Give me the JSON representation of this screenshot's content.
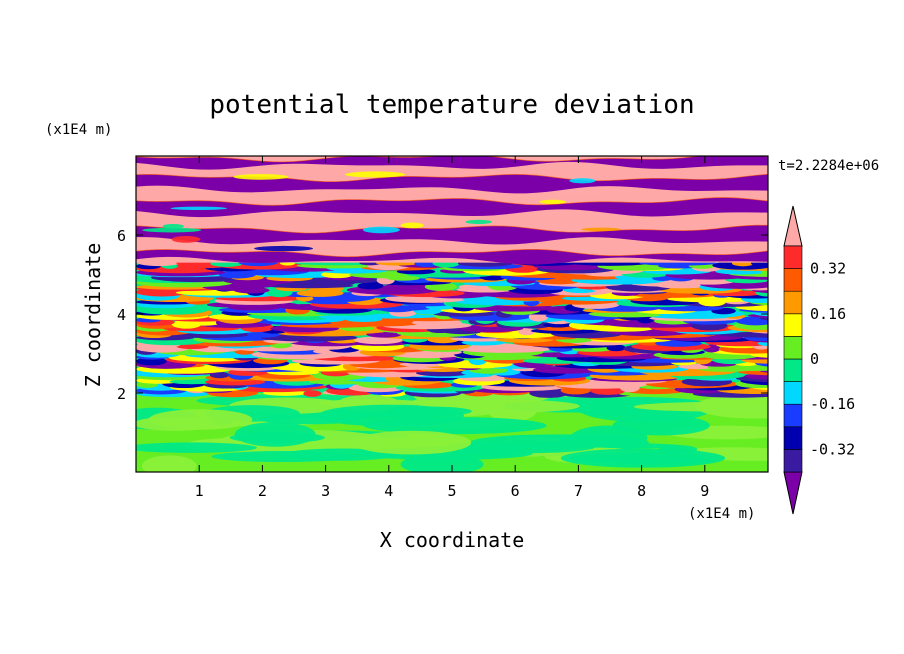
{
  "chart_data": {
    "type": "heatmap",
    "title": "potential temperature deviation",
    "xlabel": "X coordinate",
    "ylabel": "Z coordinate",
    "x_unit": "(x1E4 m)",
    "z_unit": "(x1E4 m)",
    "time_label": "t=2.2284e+06",
    "xlim": [
      0,
      10
    ],
    "zlim": [
      0,
      8
    ],
    "x_ticks": [
      1,
      2,
      3,
      4,
      5,
      6,
      7,
      8,
      9
    ],
    "z_ticks": [
      2,
      4,
      6
    ],
    "x_tick_labels": [
      "1",
      "2",
      "3",
      "4",
      "5",
      "6",
      "7",
      "8",
      "9"
    ],
    "z_tick_labels": [
      "2",
      "4",
      "6"
    ],
    "colorbar": {
      "levels": [
        -0.48,
        -0.4,
        -0.32,
        -0.24,
        -0.16,
        -0.08,
        0,
        0.08,
        0.16,
        0.24,
        0.32,
        0.4,
        0.48
      ],
      "colors": [
        "#7b00a8",
        "#3a1aa0",
        "#0000b0",
        "#1a3cff",
        "#00d8ff",
        "#00e888",
        "#66ee22",
        "#ffff00",
        "#ff9900",
        "#ff5a00",
        "#ff2a2a",
        "#ffa8a8"
      ],
      "labels": [
        "0.32",
        "0.16",
        "0",
        "-0.16",
        "-0.32"
      ],
      "label_values": [
        0.32,
        0.16,
        0,
        -0.16,
        -0.32
      ],
      "extend": "both"
    },
    "regions": [
      {
        "z_range": [
          0,
          2.0
        ],
        "pattern": "smooth green turbulent mixed layer",
        "values": [
          -0.08,
          0.08
        ]
      },
      {
        "z_range": [
          2.0,
          5.3
        ],
        "pattern": "multicolor horizontal striations",
        "values": [
          -0.48,
          0.48
        ]
      },
      {
        "z_range": [
          5.3,
          8.0
        ],
        "pattern": "alternating pink and purple horizontal bands",
        "values": [
          -0.48,
          0.48
        ]
      }
    ]
  }
}
